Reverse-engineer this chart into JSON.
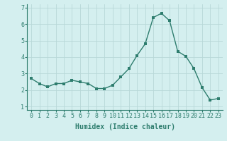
{
  "x": [
    0,
    1,
    2,
    3,
    4,
    5,
    6,
    7,
    8,
    9,
    10,
    11,
    12,
    13,
    14,
    15,
    16,
    17,
    18,
    19,
    20,
    21,
    22,
    23
  ],
  "y": [
    2.7,
    2.4,
    2.2,
    2.4,
    2.4,
    2.6,
    2.5,
    2.4,
    2.1,
    2.1,
    2.3,
    2.8,
    3.3,
    4.1,
    4.8,
    6.4,
    6.65,
    6.2,
    4.35,
    4.05,
    3.3,
    2.15,
    1.4,
    1.5
  ],
  "line_color": "#2e7d6e",
  "bg_color": "#d4efef",
  "grid_color": "#b8d8d8",
  "xlabel": "Humidex (Indice chaleur)",
  "ylim": [
    0.8,
    7.2
  ],
  "xlim": [
    -0.5,
    23.5
  ],
  "yticks": [
    1,
    2,
    3,
    4,
    5,
    6,
    7
  ],
  "xticks": [
    0,
    1,
    2,
    3,
    4,
    5,
    6,
    7,
    8,
    9,
    10,
    11,
    12,
    13,
    14,
    15,
    16,
    17,
    18,
    19,
    20,
    21,
    22,
    23
  ],
  "marker_size": 2.5,
  "line_width": 1.0,
  "xlabel_fontsize": 7,
  "tick_fontsize": 6
}
